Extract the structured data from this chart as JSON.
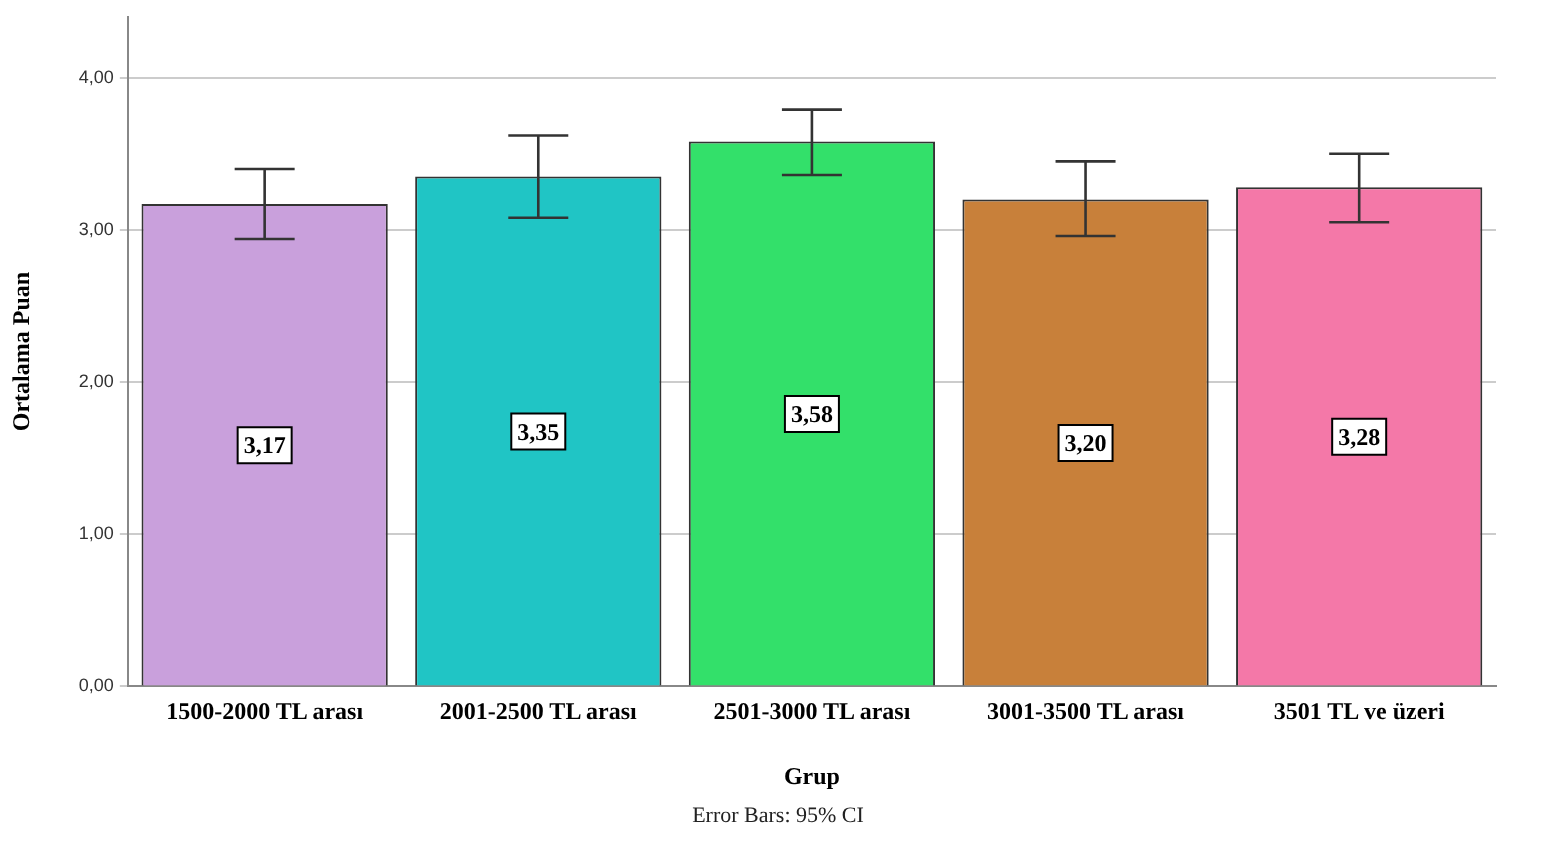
{
  "chart_data": {
    "type": "bar",
    "xlabel": "Grup",
    "ylabel": "Ortalama Puan",
    "categories": [
      "1500-2000 TL arası",
      "2001-2500 TL arası",
      "2501-3000 TL arası",
      "3001-3500 TL arası",
      "3501 TL ve üzeri"
    ],
    "values": [
      3.17,
      3.35,
      3.58,
      3.2,
      3.28
    ],
    "colors": [
      "#c9a0dc",
      "#20c5c5",
      "#33e06a",
      "#c8803a",
      "#f478a8"
    ],
    "errors": [
      [
        2.94,
        3.4
      ],
      [
        3.08,
        3.62
      ],
      [
        3.36,
        3.79
      ],
      [
        2.96,
        3.45
      ],
      [
        3.05,
        3.5
      ]
    ],
    "value_labels": [
      "3,17",
      "3,35",
      "3,58",
      "3,20",
      "3,28"
    ],
    "ylim": [
      0,
      4.4
    ],
    "yticks": [
      {
        "value": 0,
        "label": "0,00"
      },
      {
        "value": 1,
        "label": "1,00"
      },
      {
        "value": 2,
        "label": "2,00"
      },
      {
        "value": 3,
        "label": "3,00"
      },
      {
        "value": 4,
        "label": "4,00"
      }
    ],
    "grid": "y",
    "legend": false,
    "annotations": [
      "Error Bars: 95% CI"
    ]
  }
}
